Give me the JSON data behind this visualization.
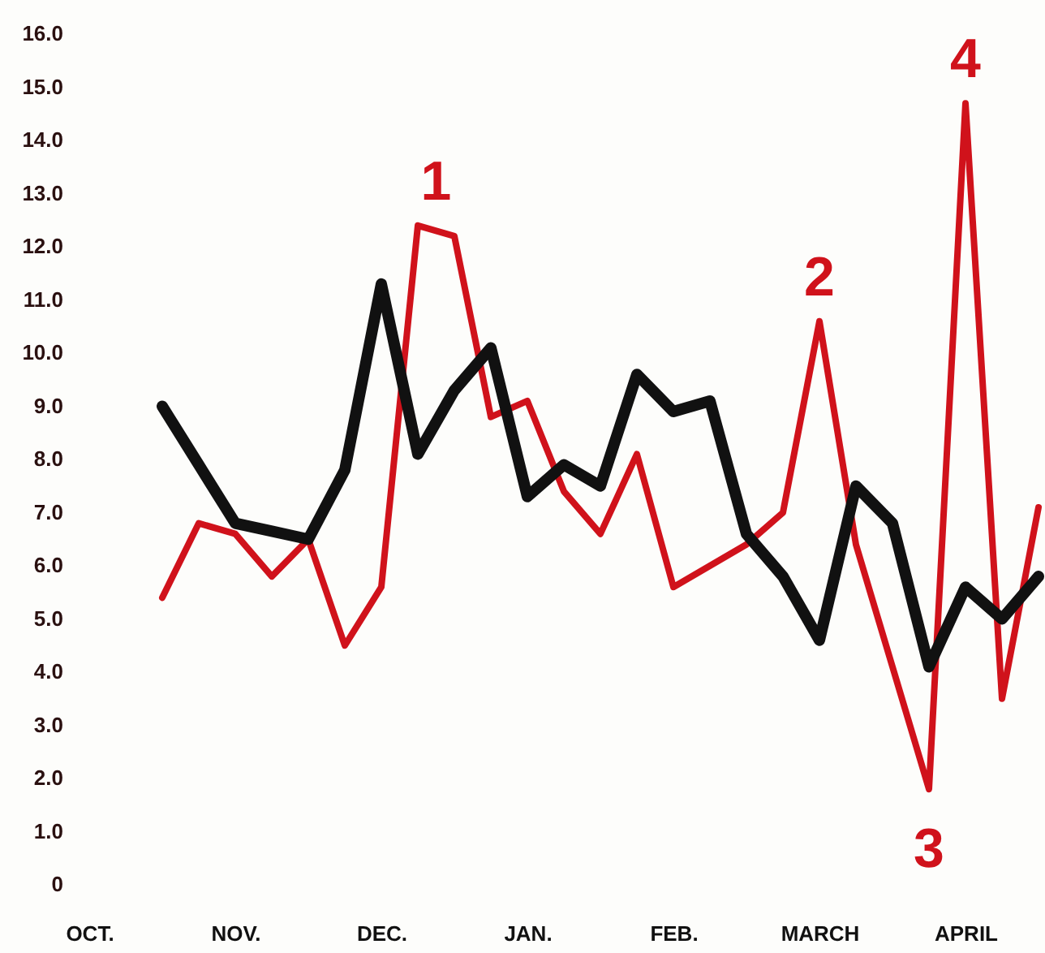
{
  "chart_data": {
    "type": "line",
    "ylim": [
      0,
      16
    ],
    "categories": [
      "OCT.",
      null,
      null,
      null,
      "NOV.",
      null,
      null,
      null,
      "DEC.",
      null,
      null,
      null,
      "JAN.",
      null,
      null,
      null,
      "FEB.",
      null,
      null,
      null,
      "MARCH",
      null,
      null,
      null,
      "APRIL",
      null,
      null
    ],
    "yticks": [
      0,
      {
        "value": 1,
        "label": "1.0"
      },
      {
        "value": 2,
        "label": "2.0"
      },
      {
        "value": 3,
        "label": "3.0"
      },
      {
        "value": 4,
        "label": "4.0"
      },
      {
        "value": 5,
        "label": "5.0"
      },
      {
        "value": 6,
        "label": "6.0"
      },
      {
        "value": 7,
        "label": "7.0"
      },
      {
        "value": 8,
        "label": "8.0"
      },
      {
        "value": 9,
        "label": "9.0"
      },
      {
        "value": 10,
        "label": "10.0"
      },
      {
        "value": 11,
        "label": "11.0"
      },
      {
        "value": 12,
        "label": "12.0"
      },
      {
        "value": 13,
        "label": "13.0"
      },
      {
        "value": 14,
        "label": "14.0"
      },
      {
        "value": 15,
        "label": "15.0"
      },
      {
        "value": 16,
        "label": "16.0"
      }
    ],
    "series": [
      {
        "color": "#d0121b",
        "values": [
          null,
          null,
          5.4,
          6.8,
          6.6,
          5.8,
          6.5,
          4.5,
          5.6,
          12.4,
          12.2,
          8.8,
          9.1,
          7.4,
          6.6,
          8.1,
          5.6,
          6.0,
          6.4,
          7.0,
          10.6,
          6.4,
          4.1,
          1.8,
          14.7,
          3.5,
          7.1
        ]
      },
      {
        "color": "#111111",
        "values": [
          null,
          null,
          9.0,
          7.9,
          6.8,
          6.65,
          6.5,
          7.8,
          11.3,
          8.1,
          9.3,
          10.1,
          7.3,
          7.9,
          7.5,
          9.6,
          8.9,
          9.1,
          6.6,
          5.8,
          4.6,
          7.5,
          6.8,
          4.1,
          5.6,
          5.0,
          5.8
        ]
      }
    ],
    "annotations": [
      {
        "text": "1",
        "y": 12.4
      },
      {
        "text": "2",
        "y": 10.6
      },
      {
        "text": "3",
        "y": 1.8
      },
      {
        "text": "4",
        "y": 14.7
      }
    ],
    "grid": false,
    "legend": false,
    "line_style": "solid"
  }
}
